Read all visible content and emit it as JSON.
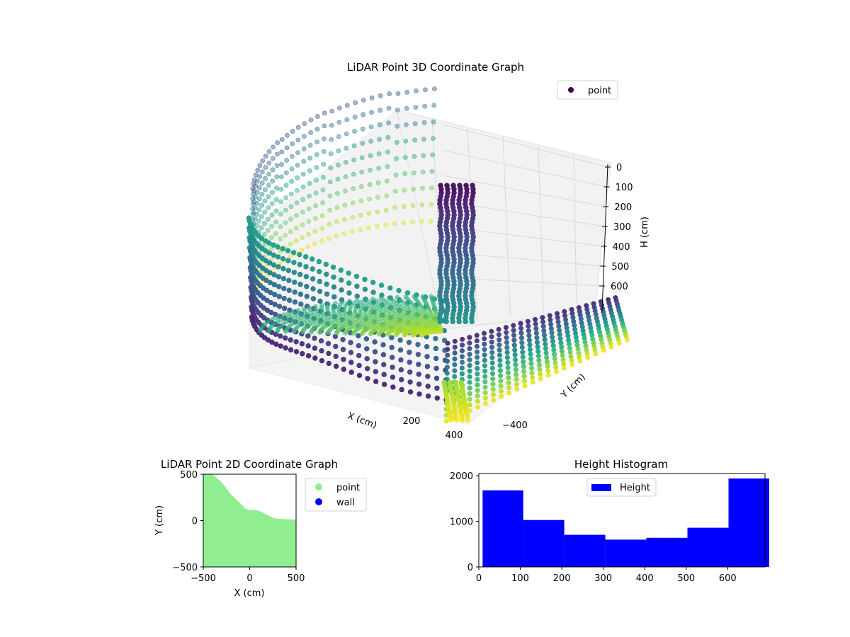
{
  "chart_data": [
    {
      "type": "scatter",
      "subtype": "3d",
      "title": "LiDAR Point 3D Coordinate Graph",
      "xlabel": "X (cm)",
      "ylabel": "Y (cm)",
      "zlabel": "H (cm)",
      "z_ticks": [
        0,
        100,
        200,
        300,
        400,
        500,
        600
      ],
      "x_tick_labels_visible": [
        "200",
        "400"
      ],
      "y_tick_labels_visible": [
        "−400"
      ],
      "legend": {
        "entries": [
          {
            "name": "point",
            "color": "#440154"
          }
        ],
        "placement": "upper-right"
      },
      "colormap": "viridis",
      "grid": true
    },
    {
      "type": "area",
      "title": "LiDAR Point 2D Coordinate Graph",
      "xlabel": "X (cm)",
      "ylabel": "Y (cm)",
      "xlim": [
        -500,
        500
      ],
      "ylim": [
        -500,
        500
      ],
      "x_ticks": [
        -500,
        0,
        500
      ],
      "y_ticks": [
        -500,
        0,
        500
      ],
      "x_tick_labels": [
        "−500",
        "0",
        "500"
      ],
      "y_tick_labels": [
        "−500",
        "0",
        "500"
      ],
      "series": [
        {
          "name": "point",
          "color": "#90ee90",
          "boundary": [
            [
              -500,
              500
            ],
            [
              -400,
              500
            ],
            [
              -300,
              410
            ],
            [
              -200,
              280
            ],
            [
              -100,
              185
            ],
            [
              -50,
              130
            ],
            [
              0,
              115
            ],
            [
              50,
              115
            ],
            [
              100,
              105
            ],
            [
              150,
              80
            ],
            [
              200,
              55
            ],
            [
              250,
              30
            ],
            [
              300,
              20
            ],
            [
              350,
              18
            ],
            [
              400,
              15
            ],
            [
              450,
              12
            ],
            [
              500,
              10
            ]
          ]
        },
        {
          "name": "wall",
          "color": "#0000ff",
          "points": []
        }
      ],
      "legend": {
        "placement": "outside-right"
      }
    },
    {
      "type": "bar",
      "subtype": "histogram",
      "title": "Height Histogram",
      "xlim": [
        0,
        690
      ],
      "ylim": [
        0,
        2050
      ],
      "x_ticks": [
        0,
        100,
        200,
        300,
        400,
        500,
        600
      ],
      "y_ticks": [
        0,
        1000,
        2000
      ],
      "bins": [
        {
          "x0": 9,
          "x1": 107,
          "count": 1680
        },
        {
          "x0": 107,
          "x1": 206,
          "count": 1030
        },
        {
          "x0": 206,
          "x1": 305,
          "count": 705
        },
        {
          "x0": 305,
          "x1": 404,
          "count": 600
        },
        {
          "x0": 404,
          "x1": 503,
          "count": 640
        },
        {
          "x0": 503,
          "x1": 602,
          "count": 860
        },
        {
          "x0": 602,
          "x1": 700,
          "count": 1940
        }
      ],
      "series": [
        {
          "name": "Height",
          "color": "#0000ff"
        }
      ],
      "legend": {
        "placement": "upper-center"
      }
    }
  ]
}
